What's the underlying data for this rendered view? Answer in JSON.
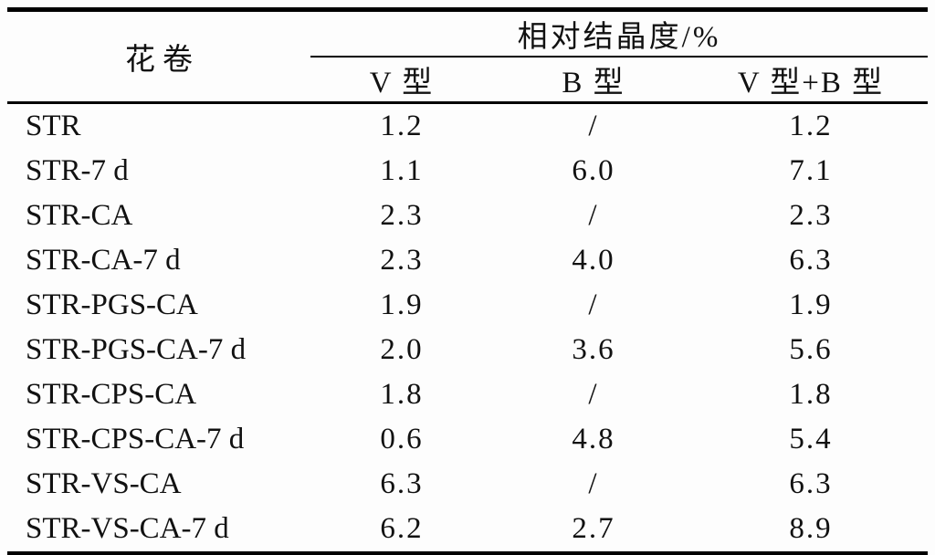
{
  "table": {
    "row_group_header": "花卷",
    "group_header": "相对结晶度/%",
    "sub_headers": {
      "v": "V 型",
      "b": "B 型",
      "vb": "V 型+B 型"
    },
    "rows": [
      {
        "label": "STR",
        "v": "1.2",
        "b": "/",
        "vb": "1.2"
      },
      {
        "label": "STR-7 d",
        "v": "1.1",
        "b": "6.0",
        "vb": "7.1"
      },
      {
        "label": "STR-CA",
        "v": "2.3",
        "b": "/",
        "vb": "2.3"
      },
      {
        "label": "STR-CA-7 d",
        "v": "2.3",
        "b": "4.0",
        "vb": "6.3"
      },
      {
        "label": "STR-PGS-CA",
        "v": "1.9",
        "b": "/",
        "vb": "1.9"
      },
      {
        "label": "STR-PGS-CA-7 d",
        "v": "2.0",
        "b": "3.6",
        "vb": "5.6"
      },
      {
        "label": "STR-CPS-CA",
        "v": "1.8",
        "b": "/",
        "vb": "1.8"
      },
      {
        "label": "STR-CPS-CA-7 d",
        "v": "0.6",
        "b": "4.8",
        "vb": "5.4"
      },
      {
        "label": "STR-VS-CA",
        "v": "6.3",
        "b": "/",
        "vb": "6.3"
      },
      {
        "label": "STR-VS-CA-7 d",
        "v": "6.2",
        "b": "2.7",
        "vb": "8.9"
      }
    ]
  }
}
